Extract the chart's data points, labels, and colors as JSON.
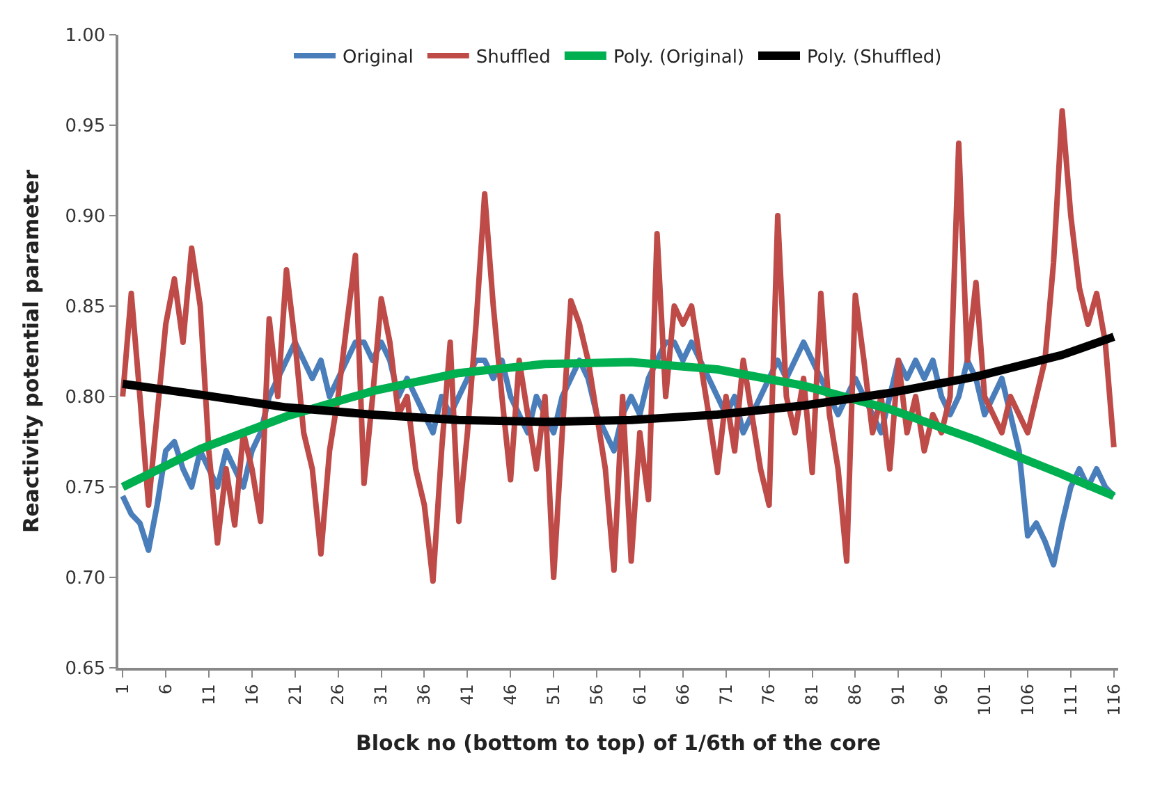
{
  "chart_data": {
    "type": "line",
    "xlabel": "Block no (bottom to top) of 1/6th of the core",
    "ylabel": "Reactivity potential parameter",
    "x": [
      1,
      2,
      3,
      4,
      5,
      6,
      7,
      8,
      9,
      10,
      11,
      12,
      13,
      14,
      15,
      16,
      17,
      18,
      19,
      20,
      21,
      22,
      23,
      24,
      25,
      26,
      27,
      28,
      29,
      30,
      31,
      32,
      33,
      34,
      35,
      36,
      37,
      38,
      39,
      40,
      41,
      42,
      43,
      44,
      45,
      46,
      47,
      48,
      49,
      50,
      51,
      52,
      53,
      54,
      55,
      56,
      57,
      58,
      59,
      60,
      61,
      62,
      63,
      64,
      65,
      66,
      67,
      68,
      69,
      70,
      71,
      72,
      73,
      74,
      75,
      76,
      77,
      78,
      79,
      80,
      81,
      82,
      83,
      84,
      85,
      86,
      87,
      88,
      89,
      90,
      91,
      92,
      93,
      94,
      95,
      96,
      97,
      98,
      99,
      100,
      101,
      102,
      103,
      104,
      105,
      106,
      107,
      108,
      109,
      110,
      111,
      112,
      113,
      114,
      115,
      116
    ],
    "series": [
      {
        "name": "Original",
        "color": "#4a7ebb",
        "values": [
          0.745,
          0.735,
          0.73,
          0.715,
          0.74,
          0.77,
          0.775,
          0.76,
          0.75,
          0.77,
          0.76,
          0.75,
          0.77,
          0.76,
          0.75,
          0.77,
          0.78,
          0.8,
          0.81,
          0.82,
          0.83,
          0.82,
          0.81,
          0.82,
          0.8,
          0.81,
          0.82,
          0.83,
          0.83,
          0.82,
          0.83,
          0.82,
          0.8,
          0.81,
          0.8,
          0.79,
          0.78,
          0.8,
          0.79,
          0.8,
          0.81,
          0.82,
          0.82,
          0.81,
          0.82,
          0.8,
          0.79,
          0.78,
          0.8,
          0.79,
          0.78,
          0.8,
          0.81,
          0.82,
          0.81,
          0.79,
          0.78,
          0.77,
          0.79,
          0.8,
          0.79,
          0.81,
          0.82,
          0.83,
          0.83,
          0.82,
          0.83,
          0.82,
          0.81,
          0.8,
          0.79,
          0.8,
          0.78,
          0.79,
          0.8,
          0.81,
          0.82,
          0.81,
          0.82,
          0.83,
          0.82,
          0.81,
          0.8,
          0.79,
          0.8,
          0.81,
          0.8,
          0.79,
          0.78,
          0.8,
          0.82,
          0.81,
          0.82,
          0.81,
          0.82,
          0.8,
          0.79,
          0.8,
          0.82,
          0.81,
          0.79,
          0.8,
          0.81,
          0.79,
          0.77,
          0.723,
          0.73,
          0.72,
          0.707,
          0.73,
          0.75,
          0.76,
          0.75,
          0.76,
          0.75,
          0.745
        ]
      },
      {
        "name": "Shuffled",
        "color": "#be4b48",
        "values": [
          0.8,
          0.857,
          0.8,
          0.74,
          0.79,
          0.84,
          0.865,
          0.83,
          0.882,
          0.85,
          0.77,
          0.719,
          0.76,
          0.729,
          0.78,
          0.76,
          0.731,
          0.843,
          0.8,
          0.87,
          0.83,
          0.78,
          0.76,
          0.713,
          0.77,
          0.8,
          0.84,
          0.878,
          0.752,
          0.8,
          0.854,
          0.83,
          0.79,
          0.8,
          0.76,
          0.74,
          0.698,
          0.77,
          0.83,
          0.731,
          0.78,
          0.84,
          0.912,
          0.85,
          0.8,
          0.754,
          0.82,
          0.79,
          0.76,
          0.8,
          0.7,
          0.78,
          0.853,
          0.84,
          0.82,
          0.79,
          0.76,
          0.704,
          0.8,
          0.709,
          0.78,
          0.743,
          0.89,
          0.8,
          0.85,
          0.84,
          0.85,
          0.82,
          0.79,
          0.758,
          0.8,
          0.77,
          0.82,
          0.79,
          0.76,
          0.74,
          0.9,
          0.8,
          0.78,
          0.81,
          0.758,
          0.857,
          0.79,
          0.76,
          0.709,
          0.856,
          0.82,
          0.78,
          0.8,
          0.76,
          0.82,
          0.78,
          0.8,
          0.77,
          0.79,
          0.78,
          0.8,
          0.94,
          0.82,
          0.863,
          0.8,
          0.79,
          0.78,
          0.8,
          0.79,
          0.78,
          0.8,
          0.82,
          0.874,
          0.958,
          0.9,
          0.86,
          0.84,
          0.857,
          0.83,
          0.772
        ]
      },
      {
        "name": "Poly. (Original)",
        "color": "#00b050",
        "x": [
          1,
          10,
          20,
          30,
          40,
          50,
          60,
          70,
          80,
          90,
          100,
          110,
          116
        ],
        "values": [
          0.75,
          0.771,
          0.789,
          0.803,
          0.813,
          0.818,
          0.819,
          0.815,
          0.806,
          0.793,
          0.776,
          0.757,
          0.745
        ]
      },
      {
        "name": "Poly. (Shuffled)",
        "color": "#000000",
        "x": [
          1,
          10,
          20,
          30,
          40,
          50,
          60,
          70,
          80,
          90,
          100,
          110,
          116
        ],
        "values": [
          0.807,
          0.801,
          0.794,
          0.79,
          0.787,
          0.786,
          0.787,
          0.79,
          0.795,
          0.802,
          0.811,
          0.823,
          0.833
        ]
      }
    ],
    "xlim": [
      0.5,
      116.5
    ],
    "xticks": [
      1,
      6,
      11,
      16,
      21,
      26,
      31,
      36,
      41,
      46,
      51,
      56,
      61,
      66,
      71,
      76,
      81,
      86,
      91,
      96,
      101,
      106,
      111,
      116
    ],
    "ylim": [
      0.65,
      1.0
    ],
    "yticks": [
      {
        "value": 0.65,
        "label": "0.65"
      },
      {
        "value": 0.7,
        "label": "0.70"
      },
      {
        "value": 0.75,
        "label": "0.75"
      },
      {
        "value": 0.8,
        "label": "0.80"
      },
      {
        "value": 0.85,
        "label": "0.85"
      },
      {
        "value": 0.9,
        "label": "0.90"
      },
      {
        "value": 0.95,
        "label": "0.95"
      },
      {
        "value": 1.0,
        "label": "1.00"
      }
    ],
    "grid": false,
    "legend": "top",
    "marker": "none",
    "line_style": "solid"
  }
}
